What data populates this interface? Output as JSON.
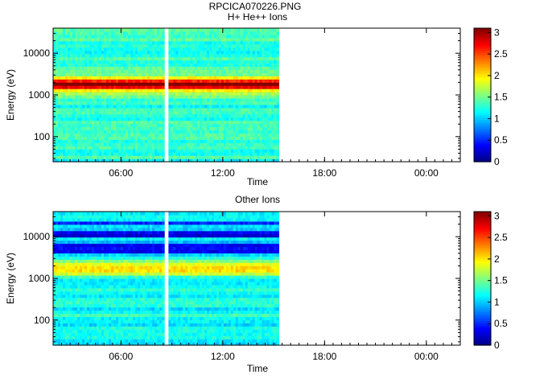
{
  "page": {
    "title": "RPCICA070226.PNG"
  },
  "chart_data": [
    {
      "type": "heatmap",
      "title": "H+ He++ Ions",
      "xlabel": "Time",
      "ylabel": "Energy (eV)",
      "xlim_hours": [
        0,
        24
      ],
      "ylim_eV": [
        25,
        40000
      ],
      "y_scale": "log",
      "x_ticks": [
        {
          "hours": 4,
          "label": "06:00"
        },
        {
          "hours": 10,
          "label": "12:00"
        },
        {
          "hours": 16,
          "label": "18:00"
        },
        {
          "hours": 22,
          "label": "00:00"
        }
      ],
      "y_ticks": [
        {
          "value": 100,
          "label": "100"
        },
        {
          "value": 1000,
          "label": "1000"
        },
        {
          "value": 10000,
          "label": "10000"
        }
      ],
      "colorbar": {
        "range": [
          0,
          3.1
        ],
        "ticks": [
          {
            "value": 0,
            "label": "0"
          },
          {
            "value": 0.5,
            "label": "0.5"
          },
          {
            "value": 1,
            "label": "1"
          },
          {
            "value": 1.5,
            "label": "1.5"
          },
          {
            "value": 2,
            "label": "2"
          },
          {
            "value": 2.5,
            "label": "2.5"
          },
          {
            "value": 3,
            "label": "3"
          }
        ]
      },
      "data_coverage_hours": [
        0,
        13.3
      ],
      "data_gaps_hours": [
        [
          6.55,
          6.8
        ]
      ],
      "peak_energy_eV": 1800,
      "peak_value": 3.0,
      "background_value": 1.3
    },
    {
      "type": "heatmap",
      "title": "Other Ions",
      "xlabel": "Time",
      "ylabel": "Energy (eV)",
      "xlim_hours": [
        0,
        24
      ],
      "ylim_eV": [
        25,
        40000
      ],
      "y_scale": "log",
      "x_ticks": [
        {
          "hours": 4,
          "label": "06:00"
        },
        {
          "hours": 10,
          "label": "12:00"
        },
        {
          "hours": 16,
          "label": "18:00"
        },
        {
          "hours": 22,
          "label": "00:00"
        }
      ],
      "y_ticks": [
        {
          "value": 100,
          "label": "100"
        },
        {
          "value": 1000,
          "label": "1000"
        },
        {
          "value": 10000,
          "label": "10000"
        }
      ],
      "colorbar": {
        "range": [
          0,
          3.1
        ],
        "ticks": [
          {
            "value": 0,
            "label": "0"
          },
          {
            "value": 0.5,
            "label": "0.5"
          },
          {
            "value": 1,
            "label": "1"
          },
          {
            "value": 1.5,
            "label": "1.5"
          },
          {
            "value": 2,
            "label": "2"
          },
          {
            "value": 2.5,
            "label": "2.5"
          },
          {
            "value": 3,
            "label": "3"
          }
        ]
      },
      "data_coverage_hours": [
        0,
        13.3
      ],
      "data_gaps_hours": [
        [
          6.55,
          6.8
        ]
      ],
      "peak_energy_eV": 1700,
      "peak_value": 2.1,
      "background_value": 1.2
    }
  ]
}
